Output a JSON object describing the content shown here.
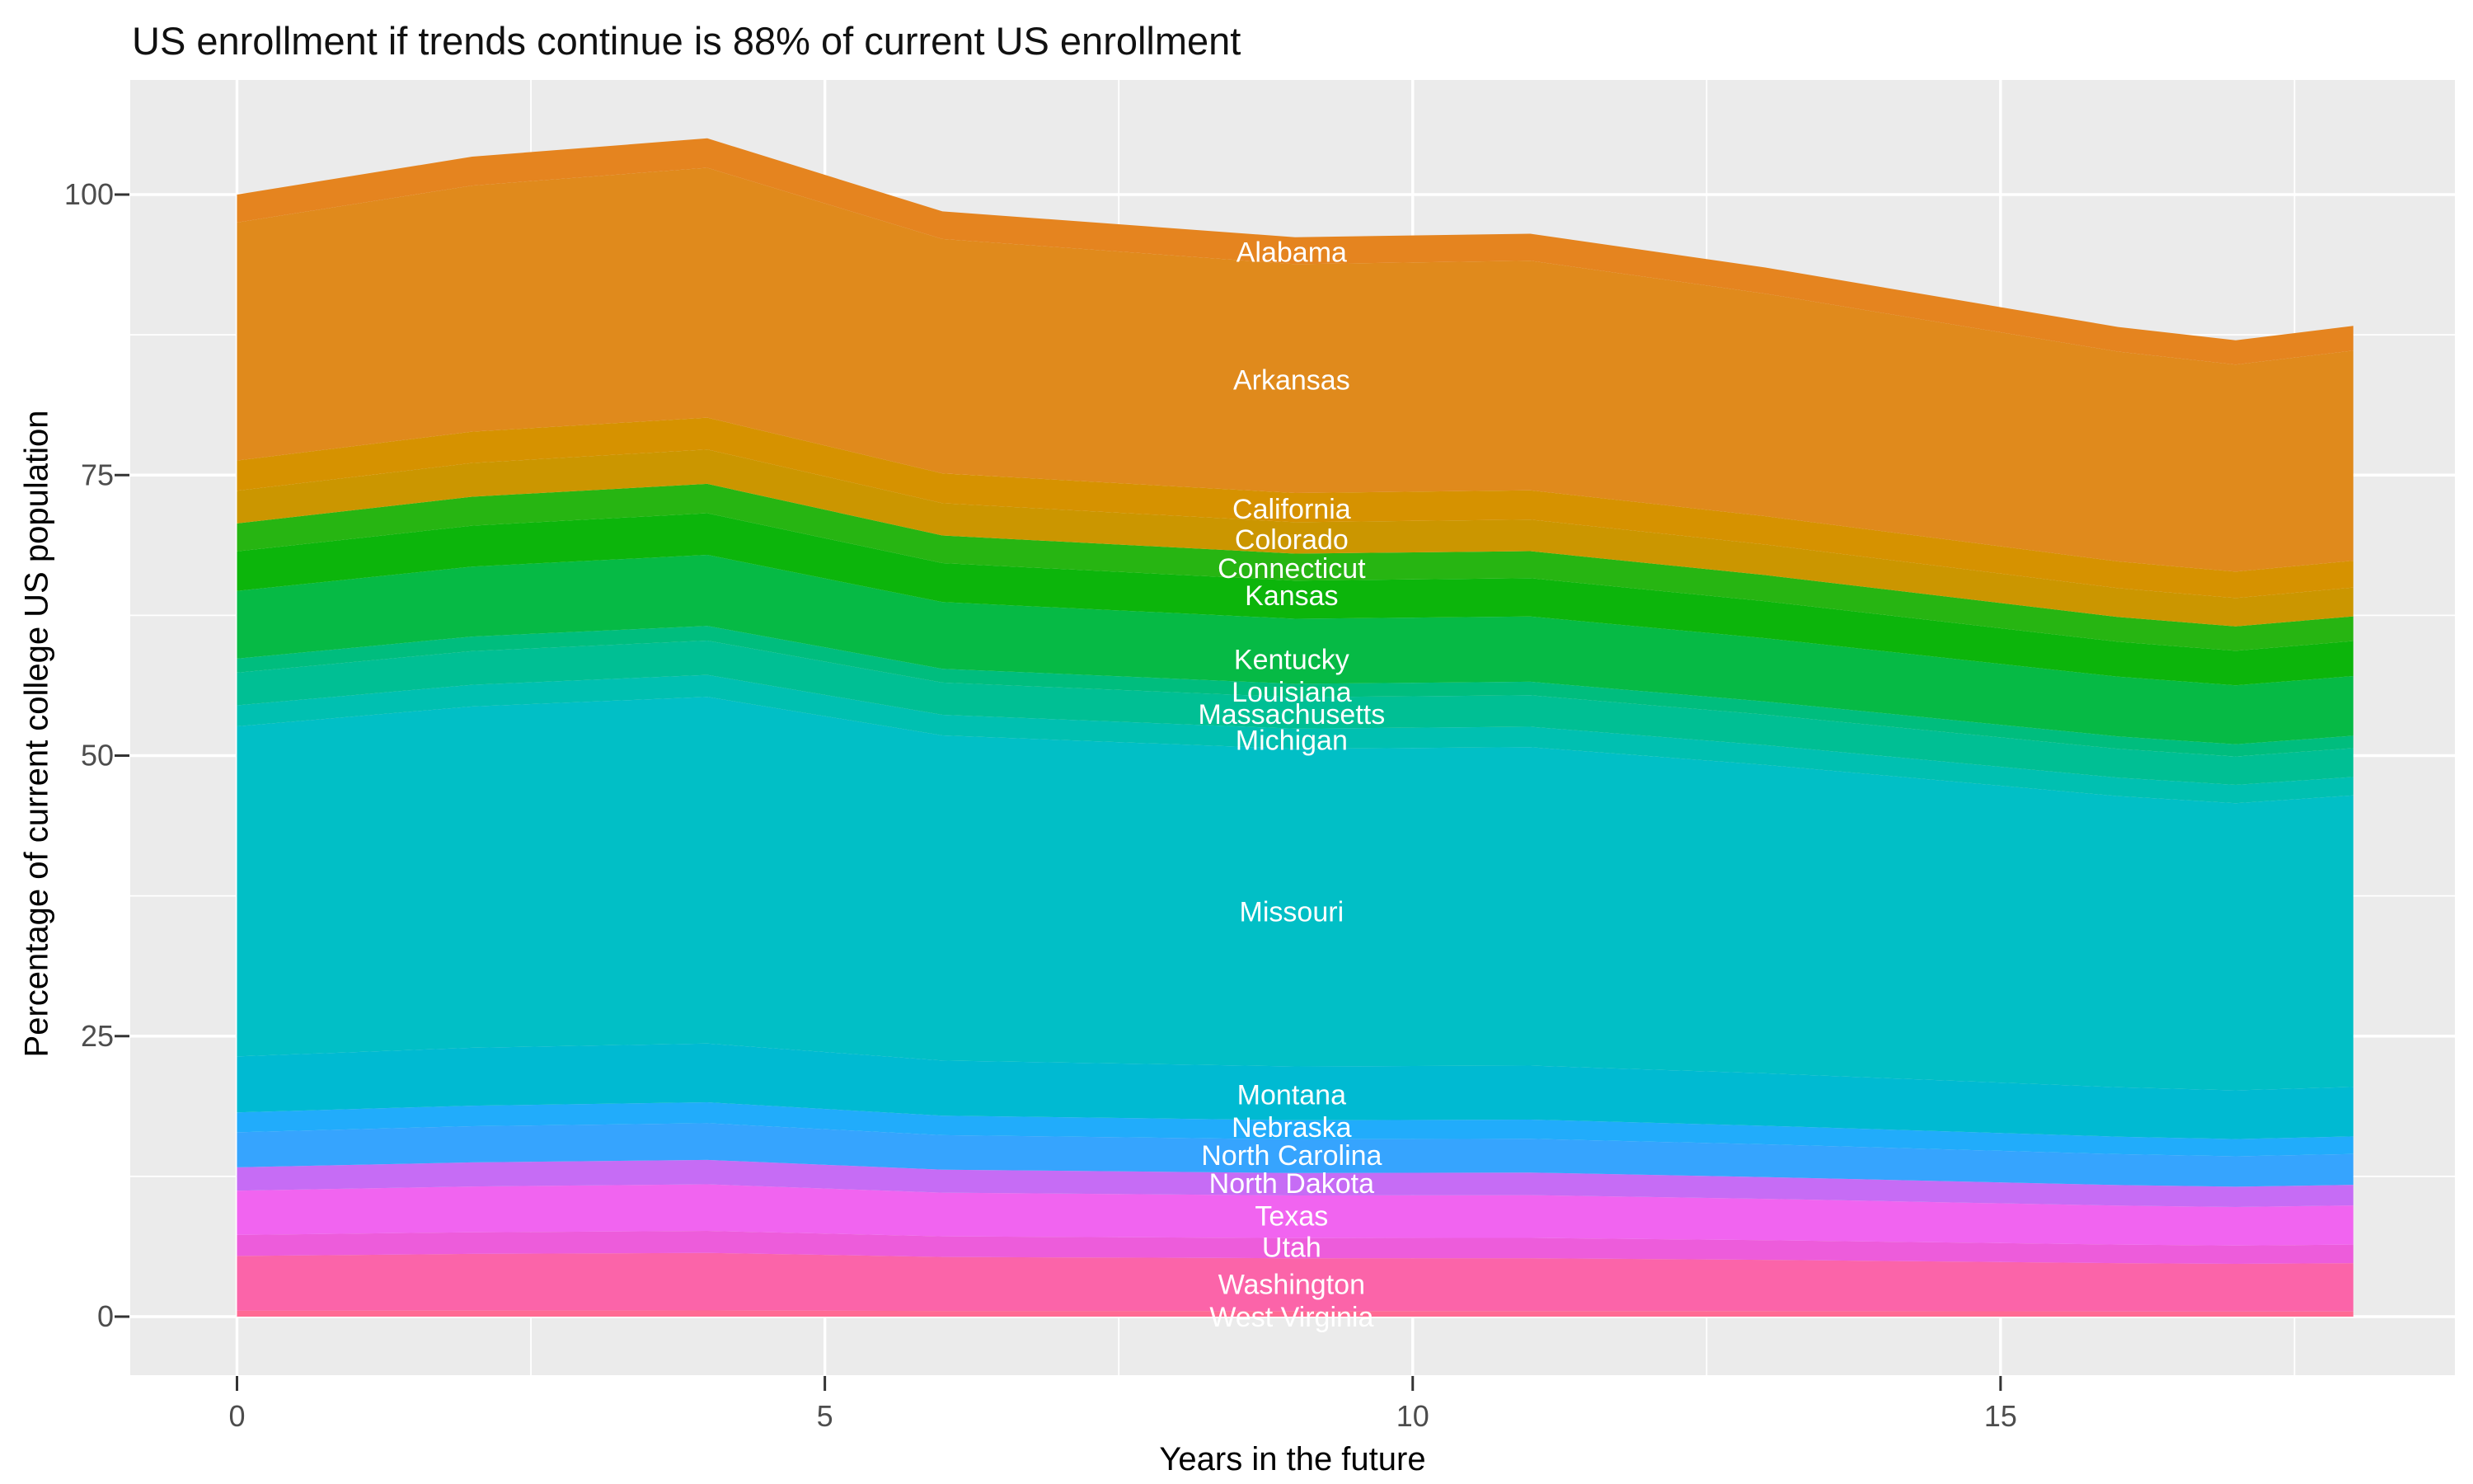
{
  "title": "US enrollment if trends continue is 88% of current US enrollment",
  "axes": {
    "x_label": "Years in the future",
    "y_label": "Percentage of current college US population",
    "x_ticks": [
      0,
      5,
      10,
      15
    ],
    "x_minor_ticks": [
      2.5,
      7.5,
      12.5,
      17.5
    ],
    "y_ticks": [
      0,
      25,
      50,
      75,
      100
    ],
    "y_minor_ticks": [
      12.5,
      37.5,
      62.5,
      87.5
    ]
  },
  "style": {
    "panel_bg": "#EBEBEB",
    "grid_color": "#FFFFFF",
    "tick_mark_color": "#333333",
    "tick_label_color": "#4D4D4D",
    "area_label_color": "#FFFFFF"
  },
  "chart_data": {
    "type": "area",
    "stacked": true,
    "title": "US enrollment if trends continue is 88% of current US enrollment",
    "xlabel": "Years in the future",
    "ylabel": "Percentage of current college US population",
    "xlim": [
      0,
      18
    ],
    "ylim": [
      0,
      105
    ],
    "grid": true,
    "legend_position": "none",
    "label_x": 8.97,
    "x": [
      0,
      2,
      4,
      6,
      9,
      11,
      13,
      16,
      17,
      18
    ],
    "total_by_x": [
      100.0,
      103.4,
      105.0,
      98.5,
      96.2,
      96.5,
      93.5,
      88.2,
      87.0,
      88.3
    ],
    "series": [
      {
        "name": "Alabama",
        "color": "#E5841F",
        "label_y": 94.9,
        "values": [
          2.49,
          2.58,
          2.62,
          2.46,
          2.4,
          2.41,
          2.33,
          2.2,
          2.17,
          2.2
        ]
      },
      {
        "name": "Arkansas",
        "color": "#E08A1C",
        "label_y": 83.5,
        "values": [
          21.21,
          21.93,
          22.27,
          20.89,
          20.4,
          20.46,
          19.83,
          18.7,
          18.45,
          18.73
        ]
      },
      {
        "name": "California",
        "color": "#D69200",
        "label_y": 72.0,
        "values": [
          2.7,
          2.79,
          2.84,
          2.66,
          2.6,
          2.61,
          2.53,
          2.38,
          2.35,
          2.39
        ]
      },
      {
        "name": "Colorado",
        "color": "#CB9600",
        "label_y": 69.3,
        "values": [
          2.91,
          3.01,
          3.06,
          2.87,
          2.8,
          2.81,
          2.72,
          2.57,
          2.53,
          2.57
        ]
      },
      {
        "name": "Connecticut",
        "color": "#27B512",
        "label_y": 66.7,
        "values": [
          2.49,
          2.58,
          2.62,
          2.46,
          2.4,
          2.41,
          2.33,
          2.2,
          2.17,
          2.2
        ]
      },
      {
        "name": "Kansas",
        "color": "#0CB50B",
        "label_y": 64.3,
        "values": [
          3.53,
          3.65,
          3.71,
          3.48,
          3.4,
          3.41,
          3.3,
          3.12,
          3.08,
          3.12
        ]
      },
      {
        "name": "Kentucky",
        "color": "#06BA45",
        "label_y": 58.6,
        "values": [
          6.03,
          6.23,
          6.33,
          5.94,
          5.8,
          5.82,
          5.64,
          5.32,
          5.25,
          5.32
        ]
      },
      {
        "name": "Louisiana",
        "color": "#00BD7E",
        "label_y": 55.7,
        "values": [
          1.25,
          1.29,
          1.31,
          1.23,
          1.2,
          1.2,
          1.17,
          1.1,
          1.09,
          1.1
        ]
      },
      {
        "name": "Massachusetts",
        "color": "#00BF94",
        "label_y": 53.7,
        "values": [
          2.91,
          3.01,
          3.06,
          2.87,
          2.8,
          2.81,
          2.72,
          2.57,
          2.53,
          2.57
        ]
      },
      {
        "name": "Michigan",
        "color": "#00C0B1",
        "label_y": 51.4,
        "values": [
          1.87,
          1.93,
          1.96,
          1.84,
          1.8,
          1.81,
          1.75,
          1.65,
          1.63,
          1.65
        ]
      },
      {
        "name": "Missouri",
        "color": "#01BFC6",
        "label_y": 36.1,
        "values": [
          29.42,
          30.42,
          30.89,
          28.98,
          28.3,
          28.39,
          27.5,
          25.95,
          25.59,
          25.98
        ]
      },
      {
        "name": "Montana",
        "color": "#00BAD2",
        "label_y": 19.8,
        "values": [
          4.99,
          5.16,
          5.24,
          4.91,
          4.8,
          4.81,
          4.67,
          4.4,
          4.34,
          4.41
        ]
      },
      {
        "name": "Nebraska",
        "color": "#21ACFB",
        "label_y": 16.9,
        "values": [
          1.77,
          1.83,
          1.86,
          1.74,
          1.7,
          1.71,
          1.65,
          1.56,
          1.54,
          1.56
        ]
      },
      {
        "name": "North Carolina",
        "color": "#36A4FE",
        "label_y": 14.4,
        "values": [
          3.12,
          3.22,
          3.27,
          3.07,
          3.0,
          3.01,
          2.92,
          2.75,
          2.71,
          2.75
        ]
      },
      {
        "name": "North Dakota",
        "color": "#C66CF5",
        "label_y": 11.9,
        "values": [
          2.08,
          2.15,
          2.18,
          2.05,
          2.0,
          2.01,
          1.94,
          1.83,
          1.81,
          1.84
        ]
      },
      {
        "name": "Texas",
        "color": "#F164F0",
        "label_y": 9.0,
        "values": [
          3.95,
          4.08,
          4.15,
          3.89,
          3.8,
          3.81,
          3.69,
          3.48,
          3.44,
          3.49
        ]
      },
      {
        "name": "Utah",
        "color": "#ED5CDB",
        "label_y": 6.2,
        "values": [
          1.87,
          1.93,
          1.96,
          1.84,
          1.8,
          1.81,
          1.75,
          1.65,
          1.63,
          1.65
        ]
      },
      {
        "name": "Washington",
        "color": "#FB64A9",
        "label_y": 2.9,
        "values": [
          4.89,
          5.05,
          5.13,
          4.81,
          4.7,
          4.71,
          4.57,
          4.31,
          4.25,
          4.31
        ]
      },
      {
        "name": "West Virginia",
        "color": "#FF6A93",
        "label_y": 0.0,
        "values": [
          0.52,
          0.54,
          0.55,
          0.51,
          0.5,
          0.5,
          0.49,
          0.46,
          0.45,
          0.46
        ]
      }
    ]
  }
}
